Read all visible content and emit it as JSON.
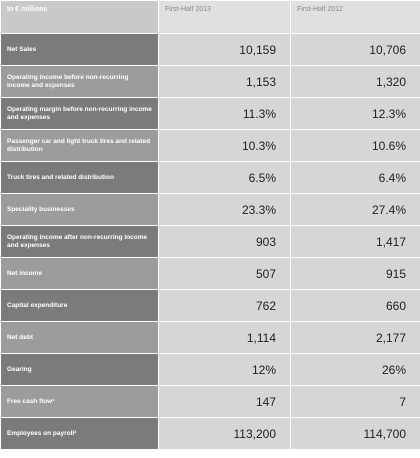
{
  "table": {
    "header": [
      "In € millions",
      "First-Half 2013",
      "First-Half 2012"
    ],
    "rows": [
      [
        "Net Sales",
        "10,159",
        "10,706"
      ],
      [
        "Operating income before non-recurring income and expenses",
        "1,153",
        "1,320"
      ],
      [
        "Operating margin before non-recurring income and expenses",
        "11.3%",
        "12.3%"
      ],
      [
        "Passenger car and light truck tires and related distribution",
        "10.3%",
        "10.6%"
      ],
      [
        "Truck tires and related distribution",
        "6.5%",
        "6.4%"
      ],
      [
        "Speciality businesses",
        "23.3%",
        "27.4%"
      ],
      [
        "Operating income after non-recurring income and expenses",
        "903",
        "1,417"
      ],
      [
        "Net income",
        "507",
        "915"
      ],
      [
        "Capital expenditure",
        "762",
        "660"
      ],
      [
        "Net debt",
        "1,114",
        "2,177"
      ],
      [
        "Gearing",
        "12%",
        "26%"
      ],
      [
        "Free cash flow¹",
        "147",
        "7"
      ],
      [
        "Employees on payroll²",
        "113,200",
        "114,700"
      ]
    ]
  }
}
